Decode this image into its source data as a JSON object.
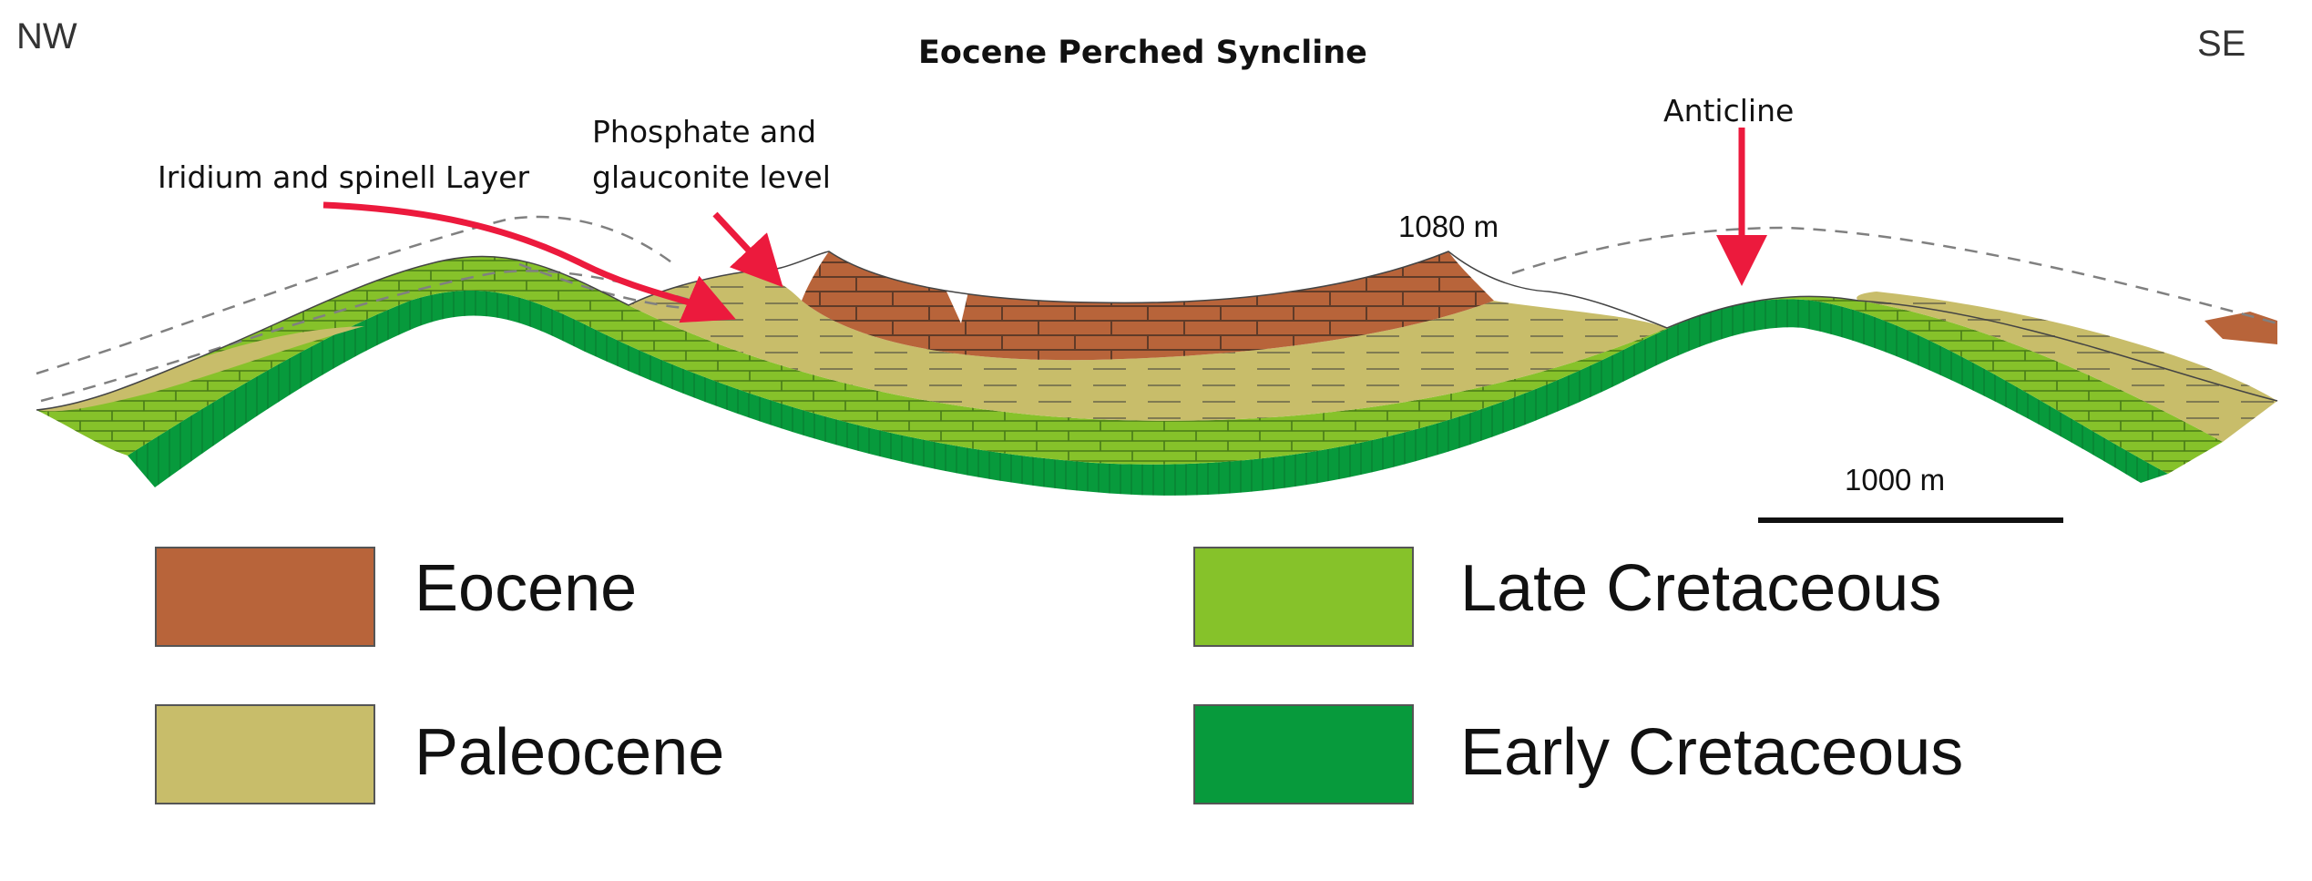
{
  "directions": {
    "left": "NW",
    "right": "SE"
  },
  "title": "Eocene Perched Syncline",
  "annotations": {
    "iridium": "Iridium and spinell Layer",
    "phosphate_line1": "Phosphate and",
    "phosphate_line2": "glauconite level",
    "anticline": "Anticline",
    "elevation": "1080 m"
  },
  "scale_bar": {
    "label": "1000 m"
  },
  "legend": [
    {
      "label": "Eocene",
      "color": "#b8643a"
    },
    {
      "label": "Paleocene",
      "color": "#c8bd6a"
    },
    {
      "label": "Late Cretaceous",
      "color": "#86c22a"
    },
    {
      "label": "Early Cretaceous",
      "color": "#079a3c"
    }
  ],
  "colors": {
    "arrow": "#ec1a3d",
    "dashed_profile": "#808080",
    "brick_line": "#3a3a3a"
  }
}
